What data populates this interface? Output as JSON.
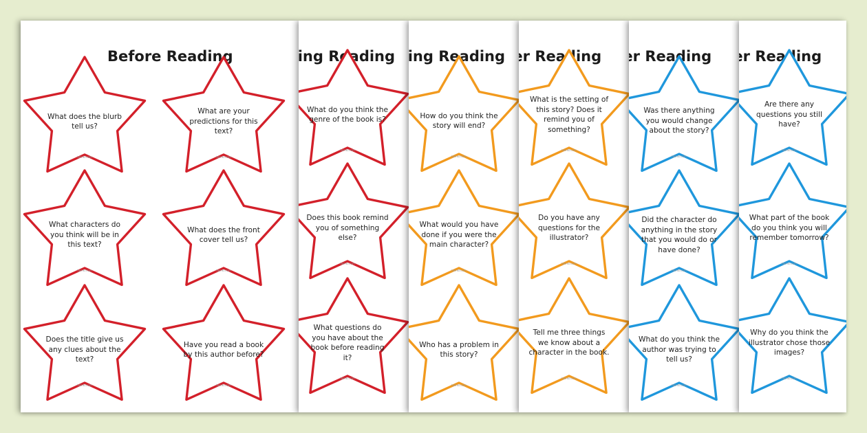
{
  "document": {
    "pages": [
      {
        "title": "Before Reading",
        "color": "#d3202a"
      },
      {
        "title": "During Reading",
        "color": "#d3202a"
      },
      {
        "title": "During Reading",
        "color": "#f29a1e"
      },
      {
        "title": "After Reading",
        "color": "#f29a1e"
      },
      {
        "title": "After Reading",
        "color": "#1f97dc"
      },
      {
        "title": "After Reading",
        "color": "#1f97dc"
      }
    ],
    "cards": [
      {
        "text": "What does the blurb tell us?",
        "color": "#d3202a"
      },
      {
        "text": "What characters do you think will be in this text?",
        "color": "#d3202a"
      },
      {
        "text": "Does the title give us any clues about the text?",
        "color": "#d3202a"
      },
      {
        "text": "What are your predictions for this text?",
        "color": "#d3202a"
      },
      {
        "text": "What does the front cover tell us?",
        "color": "#d3202a"
      },
      {
        "text": "Have you read a book by this author before?",
        "color": "#d3202a"
      },
      {
        "text": "What do you think the genre of the book is?",
        "color": "#d3202a"
      },
      {
        "text": "Does this book remind you of something else?",
        "color": "#d3202a"
      },
      {
        "text": "What questions do you have about the book before reading it?",
        "color": "#d3202a"
      },
      {
        "text": "How do you think the story will end?",
        "color": "#f29a1e"
      },
      {
        "text": "What would you have done if you were the main character?",
        "color": "#f29a1e"
      },
      {
        "text": "Who has a problem in this story?",
        "color": "#f29a1e"
      },
      {
        "text": "What is the setting of this story? Does it remind you of something?",
        "color": "#f29a1e"
      },
      {
        "text": "Do you have any questions for the illustrator?",
        "color": "#f29a1e"
      },
      {
        "text": "Tell me three things we know about a character in the book.",
        "color": "#f29a1e"
      },
      {
        "text": "Was there anything you would change about the story?",
        "color": "#1f97dc"
      },
      {
        "text": "Did the character do anything in the story that you would do or have done?",
        "color": "#1f97dc"
      },
      {
        "text": "What do you think the author was trying to tell us?",
        "color": "#1f97dc"
      },
      {
        "text": "Are there any questions you still have?",
        "color": "#1f97dc"
      },
      {
        "text": "What part of the book do you think you will remember tomorrow?",
        "color": "#1f97dc"
      },
      {
        "text": "Why do you think the illustrator chose those images?",
        "color": "#1f97dc"
      }
    ],
    "footer_text": "twinkl.com"
  }
}
